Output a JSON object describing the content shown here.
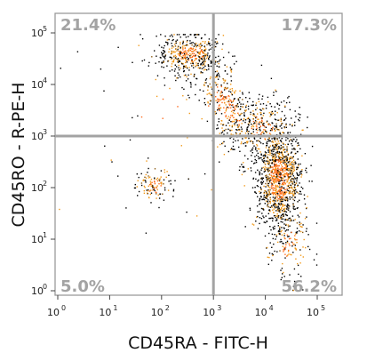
{
  "chart_data": {
    "type": "scatter",
    "subtype": "flow-cytometry-quadrant-dot-plot",
    "xlabel": "CD45RA - FITC-H",
    "ylabel": "CD45RO - R-PE-H",
    "x_scale": "log",
    "y_scale": "log",
    "xlim": [
      1,
      100000
    ],
    "ylim": [
      1,
      100000
    ],
    "x_ticks": [
      {
        "base": "10",
        "exp": "0",
        "value": 1
      },
      {
        "base": "10",
        "exp": "1",
        "value": 10
      },
      {
        "base": "10",
        "exp": "2",
        "value": 100
      },
      {
        "base": "10",
        "exp": "3",
        "value": 1000
      },
      {
        "base": "10",
        "exp": "4",
        "value": 10000
      },
      {
        "base": "10",
        "exp": "5",
        "value": 100000
      }
    ],
    "y_ticks": [
      {
        "base": "10",
        "exp": "0",
        "value": 1
      },
      {
        "base": "10",
        "exp": "1",
        "value": 10
      },
      {
        "base": "10",
        "exp": "2",
        "value": 100
      },
      {
        "base": "10",
        "exp": "3",
        "value": 1000
      },
      {
        "base": "10",
        "exp": "4",
        "value": 10000
      },
      {
        "base": "10",
        "exp": "5",
        "value": 100000
      }
    ],
    "gates": {
      "x": 1000,
      "y": 1000
    },
    "quadrants": {
      "upper_left": "21.4%",
      "upper_right": "17.3%",
      "lower_left": "5.0%",
      "lower_right": "56.2%"
    },
    "populations": [
      {
        "center": [
          350,
          40000
        ],
        "spread": [
          0.32,
          0.2
        ],
        "share": 0.17
      },
      {
        "center": [
          1800,
          4000
        ],
        "spread": [
          0.34,
          0.38
        ],
        "share": 0.15,
        "tilt": -0.9
      },
      {
        "center": [
          18000,
          150
        ],
        "spread": [
          0.22,
          0.5
        ],
        "share": 0.46
      },
      {
        "center": [
          70,
          110
        ],
        "spread": [
          0.18,
          0.17
        ],
        "share": 0.04
      },
      {
        "center": [
          8000,
          1500
        ],
        "spread": [
          0.3,
          0.3
        ],
        "share": 0.1
      },
      {
        "center": [
          200,
          1500
        ],
        "spread": [
          0.9,
          1.0
        ],
        "share": 0.03
      },
      {
        "center": [
          30000,
          8
        ],
        "spread": [
          0.2,
          0.35
        ],
        "share": 0.05
      }
    ],
    "density_colors": [
      "#000000",
      "#8a5a10",
      "#f29a1a",
      "#ff6a1a"
    ],
    "grid": false,
    "gate_line_color": "#a3a3a3",
    "background": "#ffffff"
  }
}
